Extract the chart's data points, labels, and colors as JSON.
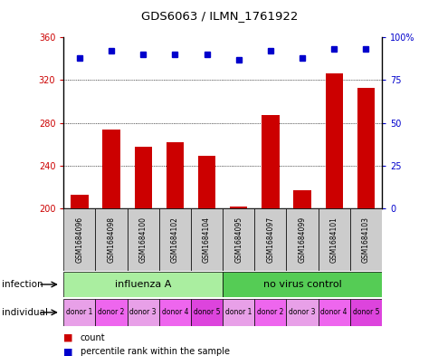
{
  "title": "GDS6063 / ILMN_1761922",
  "samples": [
    "GSM1684096",
    "GSM1684098",
    "GSM1684100",
    "GSM1684102",
    "GSM1684104",
    "GSM1684095",
    "GSM1684097",
    "GSM1684099",
    "GSM1684101",
    "GSM1684103"
  ],
  "counts": [
    213,
    274,
    258,
    262,
    249,
    202,
    287,
    217,
    326,
    313
  ],
  "percentiles": [
    88,
    92,
    90,
    90,
    90,
    87,
    92,
    88,
    93,
    93
  ],
  "ylim_left": [
    200,
    360
  ],
  "ylim_right": [
    0,
    100
  ],
  "yticks_left": [
    200,
    240,
    280,
    320,
    360
  ],
  "yticks_right": [
    0,
    25,
    50,
    75,
    100
  ],
  "bar_color": "#cc0000",
  "dot_color": "#0000cc",
  "infection_groups": [
    {
      "label": "influenza A",
      "start": 0,
      "end": 5,
      "color": "#aaeea0"
    },
    {
      "label": "no virus control",
      "start": 5,
      "end": 10,
      "color": "#55cc55"
    }
  ],
  "individual_labels": [
    "donor 1",
    "donor 2",
    "donor 3",
    "donor 4",
    "donor 5",
    "donor 1",
    "donor 2",
    "donor 3",
    "donor 4",
    "donor 5"
  ],
  "individual_colors": [
    "#e8a0e8",
    "#ee66ee",
    "#e8a0e8",
    "#ee66ee",
    "#dd44dd",
    "#e8a0e8",
    "#ee66ee",
    "#e8a0e8",
    "#ee66ee",
    "#dd44dd"
  ],
  "legend_count_label": "count",
  "legend_percentile_label": "percentile rank within the sample",
  "xlabel_infection": "infection",
  "xlabel_individual": "individual",
  "background_color": "#ffffff",
  "plot_bg_color": "#ffffff",
  "sample_box_color": "#cccccc",
  "grid_linestyle": "dotted"
}
